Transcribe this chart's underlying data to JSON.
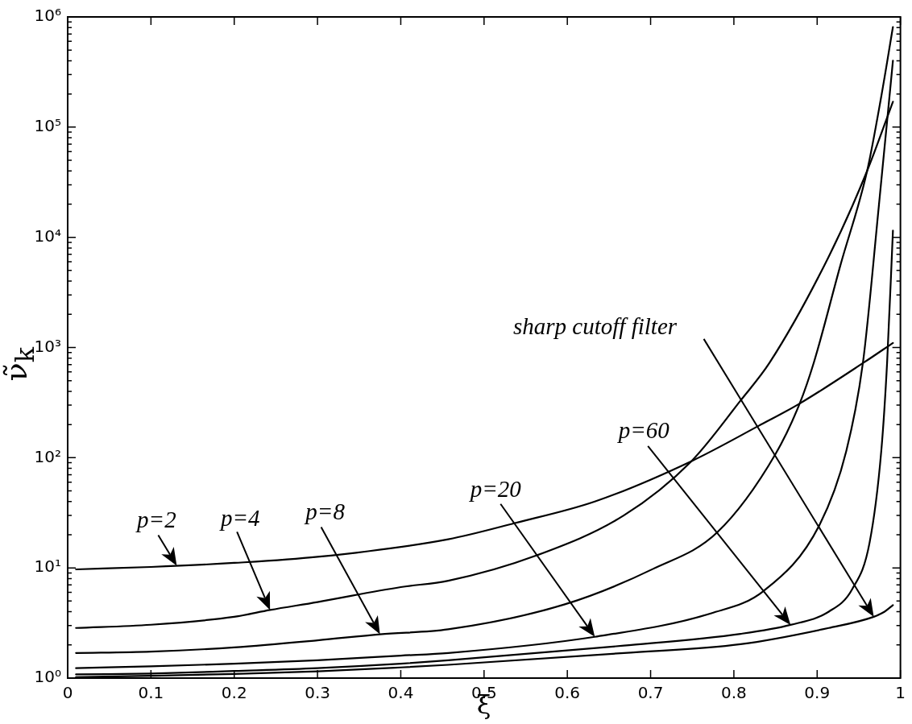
{
  "chart_data": {
    "type": "line",
    "xlabel": "ξ",
    "ylabel": "ν̃$_{k}$",
    "log": "y",
    "xlim": [
      0,
      1
    ],
    "ylim": [
      1,
      1000000
    ],
    "xticks": [
      0,
      0.1,
      0.2,
      0.3,
      0.4,
      0.5,
      0.6,
      0.7,
      0.8,
      0.9,
      1
    ],
    "yticks": [
      {
        "value": 1,
        "label": "10⁰"
      },
      {
        "value": 2,
        "label": null
      },
      {
        "value": 3,
        "label": null
      },
      {
        "value": 4,
        "label": null
      },
      {
        "value": 5,
        "label": null
      },
      {
        "value": 6,
        "label": null
      },
      {
        "value": 7,
        "label": null
      },
      {
        "value": 8,
        "label": null
      },
      {
        "value": 9,
        "label": null
      },
      {
        "value": 10,
        "label": "10¹"
      },
      {
        "value": 20,
        "label": null
      },
      {
        "value": 30,
        "label": null
      },
      {
        "value": 40,
        "label": null
      },
      {
        "value": 50,
        "label": null
      },
      {
        "value": 60,
        "label": null
      },
      {
        "value": 70,
        "label": null
      },
      {
        "value": 80,
        "label": null
      },
      {
        "value": 90,
        "label": null
      },
      {
        "value": 100,
        "label": "10²"
      },
      {
        "value": 200,
        "label": null
      },
      {
        "value": 300,
        "label": null
      },
      {
        "value": 400,
        "label": null
      },
      {
        "value": 500,
        "label": null
      },
      {
        "value": 600,
        "label": null
      },
      {
        "value": 700,
        "label": null
      },
      {
        "value": 800,
        "label": null
      },
      {
        "value": 900,
        "label": null
      },
      {
        "value": 1000,
        "label": "10³"
      },
      {
        "value": 2000,
        "label": null
      },
      {
        "value": 3000,
        "label": null
      },
      {
        "value": 4000,
        "label": null
      },
      {
        "value": 5000,
        "label": null
      },
      {
        "value": 6000,
        "label": null
      },
      {
        "value": 7000,
        "label": null
      },
      {
        "value": 8000,
        "label": null
      },
      {
        "value": 9000,
        "label": null
      },
      {
        "value": 10000,
        "label": "10⁴"
      },
      {
        "value": 20000,
        "label": null
      },
      {
        "value": 30000,
        "label": null
      },
      {
        "value": 40000,
        "label": null
      },
      {
        "value": 50000,
        "label": null
      },
      {
        "value": 60000,
        "label": null
      },
      {
        "value": 70000,
        "label": null
      },
      {
        "value": 80000,
        "label": null
      },
      {
        "value": 90000,
        "label": null
      },
      {
        "value": 100000,
        "label": "10⁵"
      },
      {
        "value": 200000,
        "label": null
      },
      {
        "value": 300000,
        "label": null
      },
      {
        "value": 400000,
        "label": null
      },
      {
        "value": 500000,
        "label": null
      },
      {
        "value": 600000,
        "label": null
      },
      {
        "value": 700000,
        "label": null
      },
      {
        "value": 800000,
        "label": null
      },
      {
        "value": 900000,
        "label": null
      },
      {
        "value": 1000000,
        "label": "10⁶"
      }
    ],
    "series": [
      {
        "color": "#000000",
        "x": [
          0.01,
          0.1,
          0.2,
          0.3,
          0.457,
          0.537,
          0.633,
          0.749,
          0.83,
          0.879,
          0.956,
          0.991
        ],
        "values": [
          9.7,
          10.2,
          11.1,
          12.6,
          18.2,
          25.5,
          40,
          93,
          195,
          310,
          730,
          1100
        ]
      },
      {
        "color": "#000000",
        "x": [
          0.01,
          0.1,
          0.2,
          0.243,
          0.3,
          0.4,
          0.457,
          0.562,
          0.668,
          0.749,
          0.808,
          0.843,
          0.914,
          0.96,
          0.991
        ],
        "values": [
          2.85,
          3.05,
          3.6,
          4.15,
          4.9,
          6.7,
          7.65,
          12.9,
          30,
          93,
          330,
          730,
          6700,
          40000,
          170000
        ]
      },
      {
        "color": "#000000",
        "x": [
          0.01,
          0.1,
          0.2,
          0.3,
          0.375,
          0.457,
          0.597,
          0.703,
          0.78,
          0.85,
          0.879,
          0.896,
          0.928,
          0.96,
          0.977,
          0.991
        ],
        "values": [
          1.69,
          1.74,
          1.9,
          2.2,
          2.5,
          2.77,
          4.67,
          9.8,
          21,
          108,
          310,
          730,
          5600,
          40000,
          190000,
          810000
        ]
      },
      {
        "color": "#000000",
        "x": [
          0.01,
          0.1,
          0.2,
          0.3,
          0.4,
          0.457,
          0.633,
          0.773,
          0.836,
          0.903,
          0.935,
          0.955,
          0.974,
          0.991
        ],
        "values": [
          1.23,
          1.28,
          1.35,
          1.45,
          1.6,
          1.69,
          2.37,
          3.88,
          6.2,
          24.7,
          115,
          730,
          19000,
          400000
        ]
      },
      {
        "color": "#000000",
        "x": [
          0.01,
          0.1,
          0.2,
          0.3,
          0.4,
          0.457,
          0.668,
          0.808,
          0.868,
          0.914,
          0.942,
          0.963,
          0.977,
          0.984,
          0.991
        ],
        "values": [
          1.08,
          1.1,
          1.16,
          1.23,
          1.35,
          1.45,
          1.97,
          2.52,
          3.04,
          4.01,
          6.4,
          17,
          115,
          730,
          11500
        ]
      },
      {
        "color": "#000000",
        "x": [
          0.01,
          0.1,
          0.2,
          0.3,
          0.4,
          0.457,
          0.668,
          0.808,
          0.914,
          0.968,
          0.981,
          0.991
        ],
        "values": [
          1.02,
          1.05,
          1.09,
          1.15,
          1.25,
          1.32,
          1.69,
          2.03,
          2.85,
          3.6,
          4.01,
          4.6
        ]
      }
    ],
    "annotations": [
      "p=2",
      "p=4",
      "p=8",
      "p=20",
      "p=60",
      "sharp cutoff filter"
    ]
  }
}
